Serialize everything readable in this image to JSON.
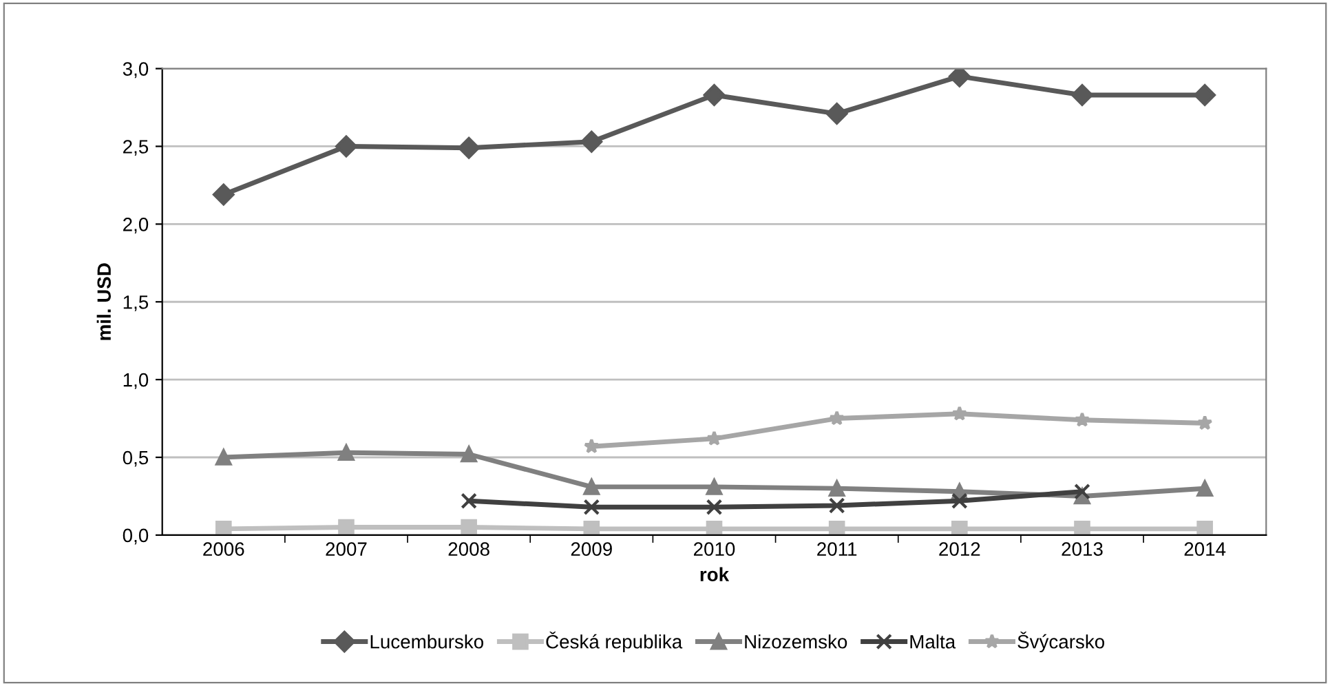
{
  "chart_data": {
    "type": "line",
    "xlabel": "rok",
    "ylabel": "mil. USD",
    "categories": [
      "2006",
      "2007",
      "2008",
      "2009",
      "2010",
      "2011",
      "2012",
      "2013",
      "2014"
    ],
    "ylim": [
      0,
      3
    ],
    "yticks": [
      {
        "value": 0,
        "label": "0,0"
      },
      {
        "value": 0.5,
        "label": "0,5"
      },
      {
        "value": 1,
        "label": "1,0"
      },
      {
        "value": 1.5,
        "label": "1,5"
      },
      {
        "value": 2,
        "label": "2,0"
      },
      {
        "value": 2.5,
        "label": "2,5"
      },
      {
        "value": 3,
        "label": "3,0"
      }
    ],
    "grid": "y",
    "legend": "bottom",
    "series": [
      {
        "name": "Lucembursko",
        "color": "#595959",
        "marker": "diamond",
        "values": [
          2.19,
          2.5,
          2.49,
          2.53,
          2.83,
          2.71,
          2.95,
          2.83,
          2.83
        ]
      },
      {
        "name": "Česká republika",
        "color": "#bfbfbf",
        "marker": "square",
        "values": [
          0.04,
          0.05,
          0.05,
          0.04,
          0.04,
          0.04,
          0.04,
          0.04,
          0.04
        ]
      },
      {
        "name": "Nizozemsko",
        "color": "#808080",
        "marker": "triangle",
        "values": [
          0.5,
          0.53,
          0.52,
          0.31,
          0.31,
          0.3,
          0.28,
          0.25,
          0.3
        ]
      },
      {
        "name": "Malta",
        "color": "#404040",
        "marker": "cross",
        "values": [
          null,
          null,
          0.22,
          0.18,
          0.18,
          0.19,
          0.22,
          0.28,
          null
        ]
      },
      {
        "name": "Švýcarsko",
        "color": "#a6a6a6",
        "marker": "star",
        "values": [
          null,
          null,
          null,
          0.57,
          0.62,
          0.75,
          0.78,
          0.74,
          0.72
        ]
      }
    ]
  }
}
